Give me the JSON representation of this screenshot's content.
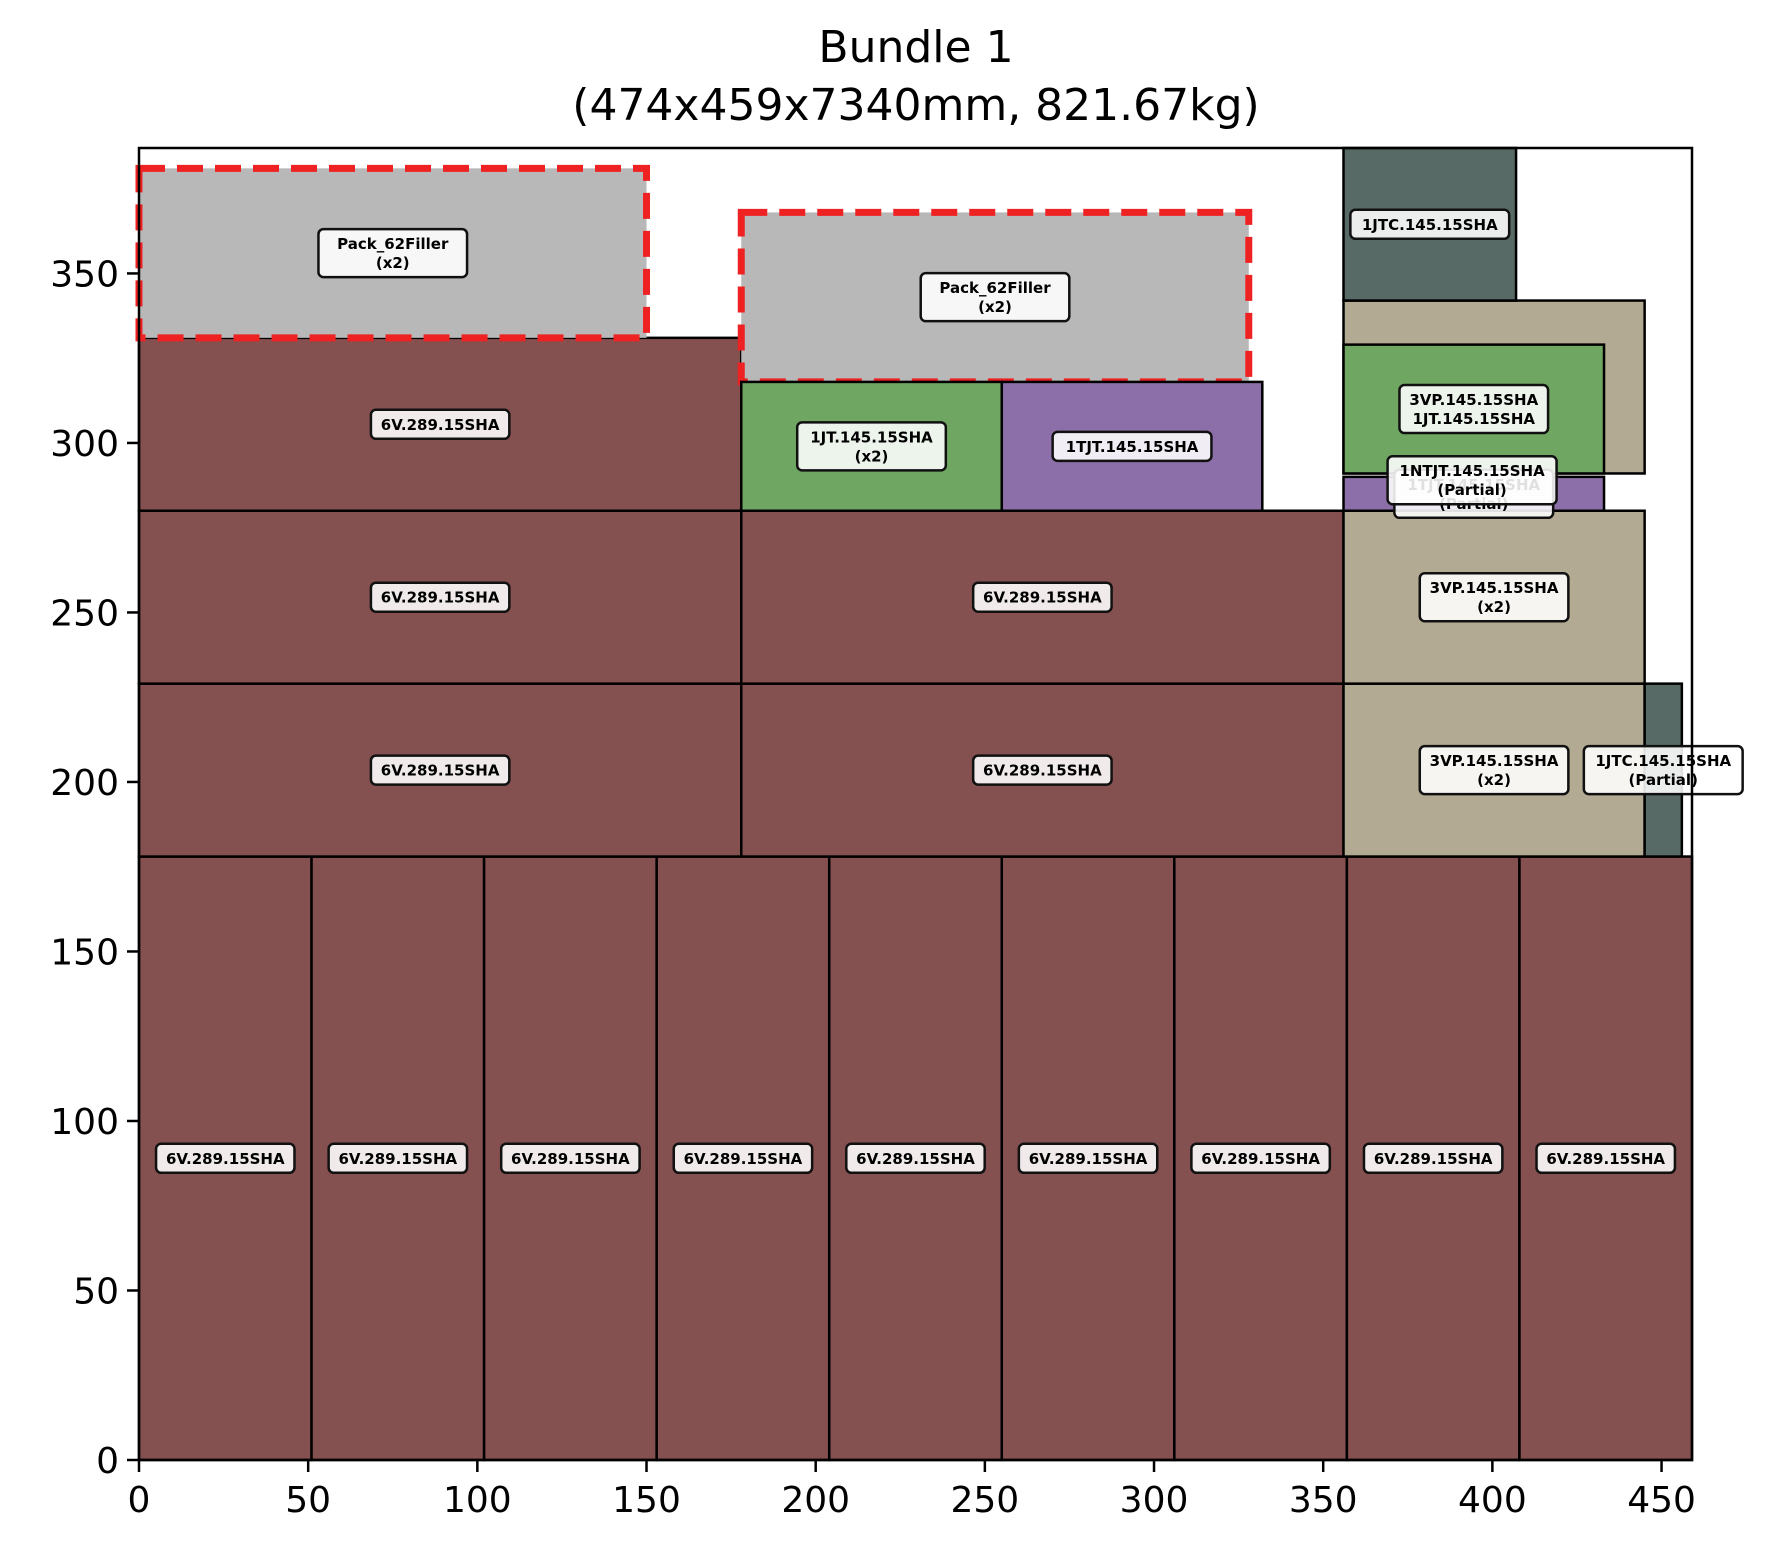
{
  "chart_data": {
    "type": "packing-layout",
    "title": "Bundle 1",
    "subtitle": "(474x459x7340mm, 821.67kg)",
    "xlim": [
      0,
      459
    ],
    "ylim": [
      0,
      387
    ],
    "xticks": [
      0,
      50,
      100,
      150,
      200,
      250,
      300,
      350,
      400,
      450
    ],
    "yticks": [
      0,
      50,
      100,
      150,
      200,
      250,
      300,
      350
    ],
    "colors": {
      "6V": "#855050",
      "filler": "#b8b8b8",
      "JT": "#6fa662",
      "TJT": "#8c6fa8",
      "VP": "#b3aa93",
      "JTC": "#586a66",
      "filler_outline": "#ee2222"
    },
    "items": [
      {
        "x": 0,
        "y": 0,
        "w": 51,
        "h": 178,
        "kind": "6V",
        "label": [
          "6V.289.15SHA"
        ]
      },
      {
        "x": 51,
        "y": 0,
        "w": 51,
        "h": 178,
        "kind": "6V",
        "label": [
          "6V.289.15SHA"
        ]
      },
      {
        "x": 102,
        "y": 0,
        "w": 51,
        "h": 178,
        "kind": "6V",
        "label": [
          "6V.289.15SHA"
        ]
      },
      {
        "x": 153,
        "y": 0,
        "w": 51,
        "h": 178,
        "kind": "6V",
        "label": [
          "6V.289.15SHA"
        ]
      },
      {
        "x": 204,
        "y": 0,
        "w": 51,
        "h": 178,
        "kind": "6V",
        "label": [
          "6V.289.15SHA"
        ]
      },
      {
        "x": 255,
        "y": 0,
        "w": 51,
        "h": 178,
        "kind": "6V",
        "label": [
          "6V.289.15SHA"
        ]
      },
      {
        "x": 306,
        "y": 0,
        "w": 51,
        "h": 178,
        "kind": "6V",
        "label": [
          "6V.289.15SHA"
        ]
      },
      {
        "x": 357,
        "y": 0,
        "w": 51,
        "h": 178,
        "kind": "6V",
        "label": [
          "6V.289.15SHA"
        ]
      },
      {
        "x": 408,
        "y": 0,
        "w": 51,
        "h": 178,
        "kind": "6V",
        "label": [
          "6V.289.15SHA"
        ]
      },
      {
        "x": 0,
        "y": 178,
        "w": 178,
        "h": 51,
        "kind": "6V",
        "label": [
          "6V.289.15SHA"
        ]
      },
      {
        "x": 178,
        "y": 178,
        "w": 178,
        "h": 51,
        "kind": "6V",
        "label": [
          "6V.289.15SHA"
        ]
      },
      {
        "x": 0,
        "y": 229,
        "w": 178,
        "h": 51,
        "kind": "6V",
        "label": [
          "6V.289.15SHA"
        ]
      },
      {
        "x": 178,
        "y": 229,
        "w": 178,
        "h": 51,
        "kind": "6V",
        "label": [
          "6V.289.15SHA"
        ]
      },
      {
        "x": 0,
        "y": 280,
        "w": 178,
        "h": 51,
        "kind": "6V",
        "label": [
          "6V.289.15SHA"
        ]
      },
      {
        "x": 0,
        "y": 331,
        "w": 150,
        "h": 50,
        "kind": "filler",
        "label": [
          "Pack_62Filler",
          "(x2)"
        ]
      },
      {
        "x": 178,
        "y": 318,
        "w": 150,
        "h": 50,
        "kind": "filler",
        "label": [
          "Pack_62Filler",
          "(x2)"
        ]
      },
      {
        "x": 178,
        "y": 280,
        "w": 77,
        "h": 38,
        "kind": "JT",
        "label": [
          "1JT.145.15SHA",
          "(x2)"
        ]
      },
      {
        "x": 255,
        "y": 280,
        "w": 77,
        "h": 38,
        "kind": "TJT",
        "label": [
          "1TJT.145.15SHA"
        ]
      },
      {
        "x": 356,
        "y": 178,
        "w": 89,
        "h": 51,
        "kind": "VP",
        "label": [
          "3VP.145.15SHA",
          "(x2)"
        ]
      },
      {
        "x": 445,
        "y": 178,
        "w": 11,
        "h": 51,
        "kind": "JTC",
        "label": [
          "1JTC.145.15SHA",
          "(Partial)"
        ]
      },
      {
        "x": 356,
        "y": 229,
        "w": 89,
        "h": 51,
        "kind": "VP",
        "label": [
          "3VP.145.15SHA",
          "(x2)"
        ]
      },
      {
        "x": 356,
        "y": 280,
        "w": 77,
        "h": 10,
        "kind": "TJT",
        "label": [
          "1TJT.145.15SHA",
          "(Partial)"
        ]
      },
      {
        "x": 356,
        "y": 291,
        "w": 89,
        "h": 51,
        "kind": "VP",
        "label": []
      },
      {
        "x": 356,
        "y": 291,
        "w": 77,
        "h": 38,
        "kind": "JT",
        "label": [
          "3VP.145.15SHA",
          "1JT.145.15SHA"
        ]
      },
      {
        "x": 356,
        "y": 342,
        "w": 51,
        "h": 45,
        "kind": "JTC",
        "label": [
          "1JTC.145.15SHA"
        ]
      }
    ],
    "floating_labels": [
      {
        "x": 394,
        "y": 289,
        "label": [
          "1NTJT.145.15SHA",
          "(Partial)"
        ]
      }
    ]
  }
}
